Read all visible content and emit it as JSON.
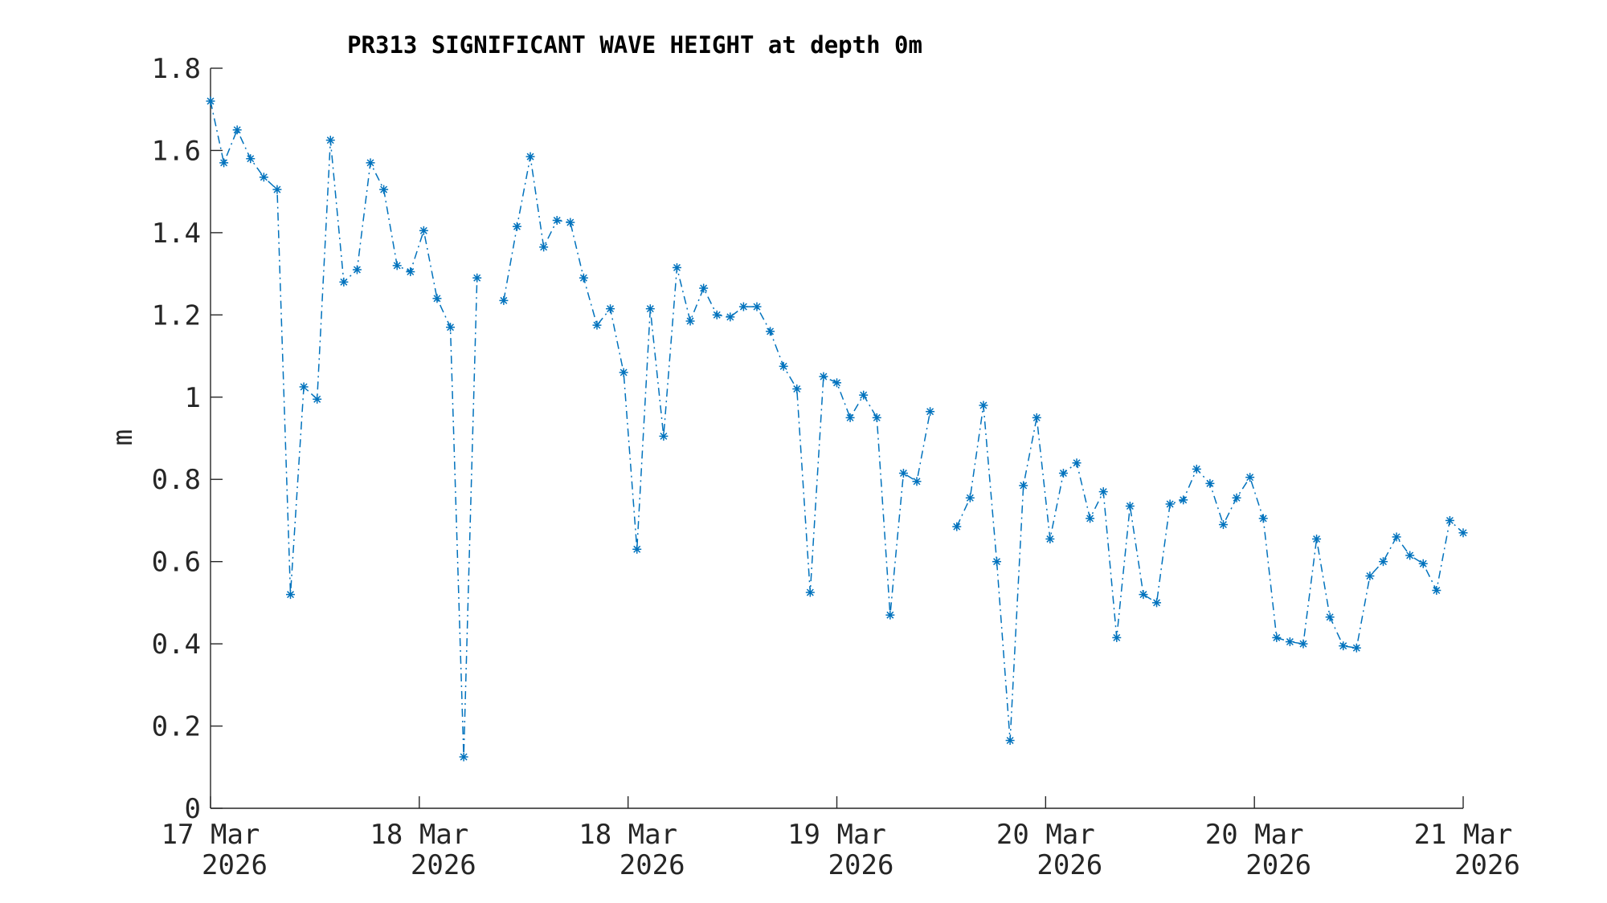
{
  "colors": {
    "series": "#0072BD",
    "axis": "#262626"
  },
  "chart_data": {
    "type": "line",
    "title": "PR313 SIGNIFICANT WAVE HEIGHT at depth 0m",
    "xlabel": "",
    "ylabel": "m",
    "ylim": [
      0,
      1.8
    ],
    "xlim": [
      0,
      6
    ],
    "grid": false,
    "marker": "asterisk",
    "line_style": "dash-dot",
    "x_ticks": [
      {
        "value": 0,
        "line1": "17 Mar",
        "line2": "2026"
      },
      {
        "value": 1,
        "line1": "18 Mar",
        "line2": "2026"
      },
      {
        "value": 2,
        "line1": "18 Mar",
        "line2": "2026"
      },
      {
        "value": 3,
        "line1": "19 Mar",
        "line2": "2026"
      },
      {
        "value": 4,
        "line1": "20 Mar",
        "line2": "2026"
      },
      {
        "value": 5,
        "line1": "20 Mar",
        "line2": "2026"
      },
      {
        "value": 6,
        "line1": "21 Mar",
        "line2": "2026"
      }
    ],
    "y_ticks": [
      {
        "value": 0,
        "label": "0"
      },
      {
        "value": 0.2,
        "label": "0.2"
      },
      {
        "value": 0.4,
        "label": "0.4"
      },
      {
        "value": 0.6,
        "label": "0.6"
      },
      {
        "value": 0.8,
        "label": "0.8"
      },
      {
        "value": 1.0,
        "label": "1"
      },
      {
        "value": 1.2,
        "label": "1.2"
      },
      {
        "value": 1.4,
        "label": "1.4"
      },
      {
        "value": 1.6,
        "label": "1.6"
      },
      {
        "value": 1.8,
        "label": "1.8"
      }
    ],
    "series": [
      {
        "values": [
          1.72,
          1.57,
          1.65,
          1.58,
          1.535,
          1.505,
          0.52,
          1.025,
          0.995,
          1.625,
          1.28,
          1.31,
          1.57,
          1.505,
          1.32,
          1.305,
          1.405,
          1.24,
          1.17,
          0.125,
          1.29,
          null,
          1.235,
          1.415,
          1.585,
          1.365,
          1.43,
          1.425,
          1.29,
          1.175,
          1.215,
          1.06,
          0.63,
          1.215,
          0.905,
          1.315,
          1.185,
          1.265,
          1.2,
          1.195,
          1.22,
          1.22,
          1.16,
          1.075,
          1.02,
          0.525,
          1.05,
          1.035,
          0.95,
          1.005,
          0.95,
          0.47,
          0.815,
          0.795,
          0.965,
          null,
          0.685,
          0.755,
          0.98,
          0.6,
          0.165,
          0.785,
          0.95,
          0.655,
          0.815,
          0.84,
          0.705,
          0.77,
          0.415,
          0.735,
          0.52,
          0.5,
          0.74,
          0.75,
          0.825,
          0.79,
          0.69,
          0.755,
          0.805,
          0.705,
          0.415,
          0.405,
          0.4,
          0.655,
          0.465,
          0.395,
          0.39,
          0.565,
          0.6,
          0.66,
          0.615,
          0.595,
          0.53,
          0.7,
          0.67
        ]
      }
    ]
  }
}
